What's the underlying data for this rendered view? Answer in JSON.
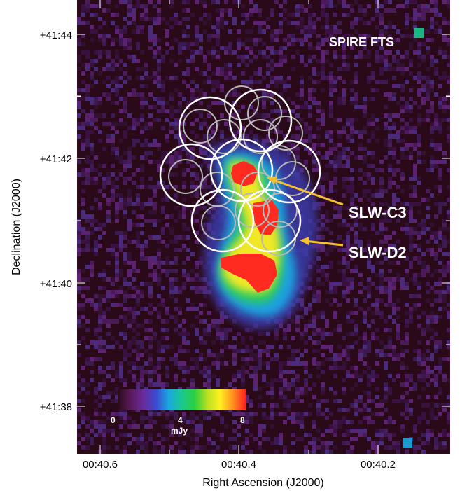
{
  "figure": {
    "instrument_label": "SPIRE FTS",
    "x_axis_title": "Right Ascension (J2000)",
    "y_axis_title": "Declination (J2000)",
    "x_ticks": [
      {
        "label": "00:40.6"
      },
      {
        "label": "00:40.4"
      },
      {
        "label": "00:40.2"
      }
    ],
    "y_ticks": [
      {
        "label": "+41:44"
      },
      {
        "label": "+41:42"
      },
      {
        "label": "+41:40"
      },
      {
        "label": "+41:38"
      }
    ],
    "pointers": [
      {
        "label": "SLW-C3",
        "color": "#f6c12a"
      },
      {
        "label": "SLW-D2",
        "color": "#f6c12a"
      }
    ],
    "colorbar": {
      "unit": "mJy",
      "ticks": [
        "0",
        "4",
        "8"
      ],
      "colors": [
        "#2a0a18",
        "#5a1a5a",
        "#6a2a9a",
        "#3a4ad0",
        "#1aa8e0",
        "#1ac890",
        "#2ad040",
        "#b8e020",
        "#fff020",
        "#ff9020",
        "#ff2020"
      ]
    },
    "background_color": "#2a0a18",
    "circle_colors": {
      "large": "#ffffff",
      "small": "#b8b8b8"
    }
  }
}
